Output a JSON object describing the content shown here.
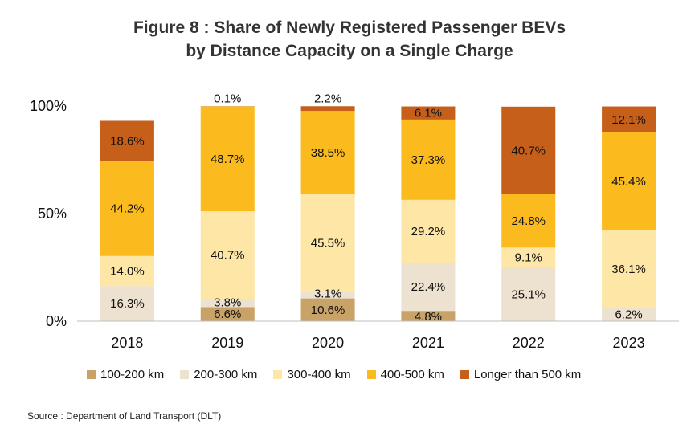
{
  "title_line1": "Figure 8 : Share of Newly Registered Passenger BEVs",
  "title_line2": "by Distance Capacity on a Single Charge",
  "source": "Source : Department of Land Transport (DLT)",
  "chart_data": {
    "type": "bar",
    "stacked": true,
    "categories": [
      "2018",
      "2019",
      "2020",
      "2021",
      "2022",
      "2023"
    ],
    "y_ticks": [
      "0%",
      "50%",
      "100%"
    ],
    "ylim": [
      0,
      100
    ],
    "series": [
      {
        "name": "100-200 km",
        "color": "#C9A267",
        "values": [
          0,
          6.6,
          10.6,
          4.8,
          0,
          0
        ],
        "labels": [
          "",
          "6.6%",
          "10.6%",
          "4.8%",
          "",
          ""
        ]
      },
      {
        "name": "200-300 km",
        "color": "#EDE1CF",
        "values": [
          16.3,
          3.8,
          3.1,
          22.4,
          25.1,
          6.2
        ],
        "labels": [
          "16.3%",
          "3.8%",
          "3.1%",
          "22.4%",
          "25.1%",
          "6.2%"
        ]
      },
      {
        "name": "300-400 km",
        "color": "#FDE6A6",
        "values": [
          14.0,
          40.7,
          45.5,
          29.2,
          9.1,
          36.1
        ],
        "labels": [
          "14.0%",
          "40.7%",
          "45.5%",
          "29.2%",
          "9.1%",
          "36.1%"
        ]
      },
      {
        "name": "400-500 km",
        "color": "#FBBA1E",
        "values": [
          44.2,
          48.7,
          38.5,
          37.3,
          24.8,
          45.4
        ],
        "labels": [
          "44.2%",
          "48.7%",
          "38.5%",
          "37.3%",
          "24.8%",
          "45.4%"
        ]
      },
      {
        "name": "Longer than 500 km",
        "color": "#C55F1A",
        "values": [
          18.6,
          0.1,
          2.2,
          6.1,
          40.7,
          12.1
        ],
        "labels": [
          "18.6%",
          "0.1%",
          "2.2%",
          "6.1%",
          "40.7%",
          "12.1%"
        ]
      }
    ],
    "legend_position": "bottom"
  }
}
